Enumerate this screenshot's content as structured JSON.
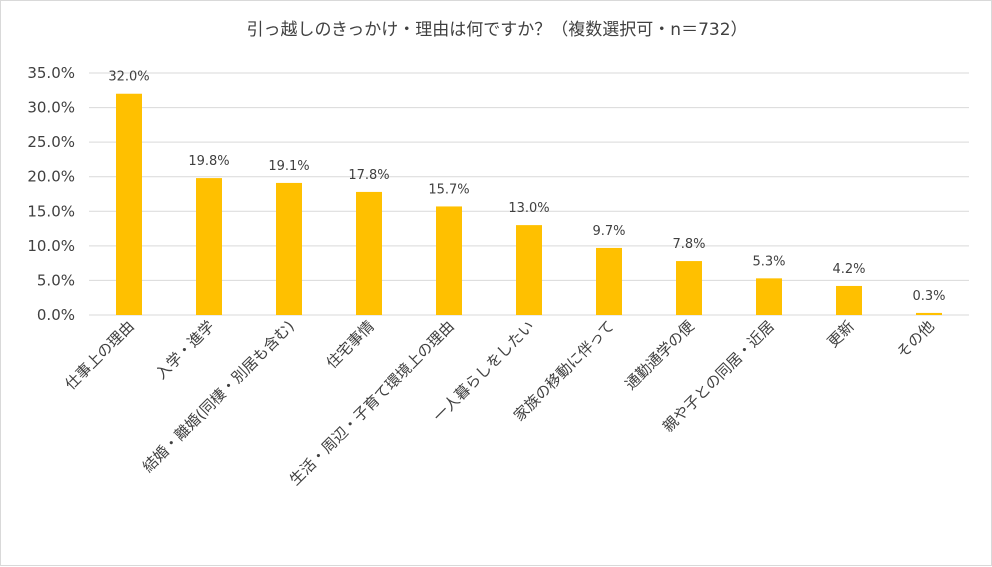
{
  "chart_data": {
    "type": "bar",
    "title": "引っ越しのきっかけ・理由は何ですか？（複数選択可・n＝732）",
    "categories": [
      "仕事上の理由",
      "入学・進学",
      "結婚・離婚(同棲・別居も含む)",
      "住宅事情",
      "生活・周辺・子育て環境上の理由",
      "一人暮らしをしたい",
      "家族の移動に伴って",
      "通勤通学の便",
      "親や子との同居・近居",
      "更新",
      "その他"
    ],
    "values": [
      32.0,
      19.8,
      19.1,
      17.8,
      15.7,
      13.0,
      9.7,
      7.8,
      5.3,
      4.2,
      0.3
    ],
    "data_labels": [
      "32.0%",
      "19.8%",
      "19.1%",
      "17.8%",
      "15.7%",
      "13.0%",
      "9.7%",
      "7.8%",
      "5.3%",
      "4.2%",
      "0.3%"
    ],
    "ylim": [
      0,
      35
    ],
    "yticks": [
      "0.0%",
      "5.0%",
      "10.0%",
      "15.0%",
      "20.0%",
      "25.0%",
      "30.0%",
      "35.0%"
    ],
    "ytick_values": [
      0,
      5,
      10,
      15,
      20,
      25,
      30,
      35
    ],
    "xlabel": "",
    "ylabel": "",
    "grid": true,
    "legend": "none",
    "colors": {
      "bar": "#FFC000",
      "grid": "#d9d9d9",
      "text": "#404040"
    }
  }
}
